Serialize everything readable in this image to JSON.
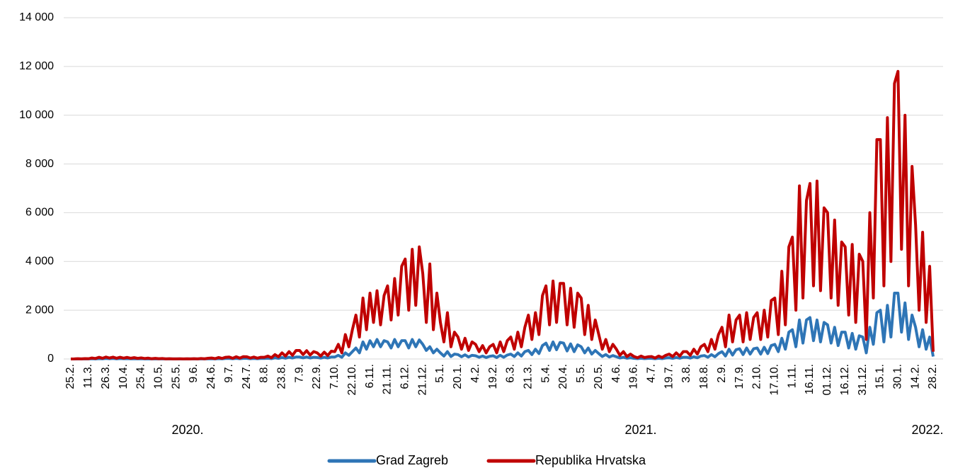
{
  "chart_data": {
    "type": "line",
    "categories": [
      "25.2.",
      null,
      null,
      null,
      null,
      "11.3.",
      null,
      null,
      null,
      null,
      "26.3.",
      null,
      null,
      null,
      null,
      "10.4.",
      null,
      null,
      null,
      null,
      "25.4.",
      null,
      null,
      null,
      null,
      "10.5.",
      null,
      null,
      null,
      null,
      "25.5.",
      null,
      null,
      null,
      null,
      "9.6.",
      null,
      null,
      null,
      null,
      "24.6.",
      null,
      null,
      null,
      null,
      "9.7.",
      null,
      null,
      null,
      null,
      "24.7.",
      null,
      null,
      null,
      null,
      "8.8.",
      null,
      null,
      null,
      null,
      "23.8.",
      null,
      null,
      null,
      null,
      "7.9.",
      null,
      null,
      null,
      null,
      "22.9.",
      null,
      null,
      null,
      null,
      "7.10.",
      null,
      null,
      null,
      null,
      "22.10.",
      null,
      null,
      null,
      null,
      "6.11.",
      null,
      null,
      null,
      null,
      "21.11.",
      null,
      null,
      null,
      null,
      "6.12.",
      null,
      null,
      null,
      null,
      "21.12.",
      null,
      null,
      null,
      null,
      "5.1.",
      null,
      null,
      null,
      null,
      "20.1.",
      null,
      null,
      null,
      null,
      "4.2.",
      null,
      null,
      null,
      null,
      "19.2.",
      null,
      null,
      null,
      null,
      "6.3.",
      null,
      null,
      null,
      null,
      "21.3.",
      null,
      null,
      null,
      null,
      "5.4.",
      null,
      null,
      null,
      null,
      "20.4.",
      null,
      null,
      null,
      null,
      "5.5.",
      null,
      null,
      null,
      null,
      "20.5.",
      null,
      null,
      null,
      null,
      "4.6.",
      null,
      null,
      null,
      null,
      "19.6.",
      null,
      null,
      null,
      null,
      "4.7.",
      null,
      null,
      null,
      null,
      "19.7.",
      null,
      null,
      null,
      null,
      "3.8.",
      null,
      null,
      null,
      null,
      "18.8.",
      null,
      null,
      null,
      null,
      "2.9.",
      null,
      null,
      null,
      null,
      "17.9.",
      null,
      null,
      null,
      null,
      "2.10.",
      null,
      null,
      null,
      null,
      "17.10.",
      null,
      null,
      null,
      null,
      "1.11.",
      null,
      null,
      null,
      null,
      "16.11.",
      null,
      null,
      null,
      null,
      "01.12.",
      null,
      null,
      null,
      null,
      "16.12.",
      null,
      null,
      null,
      null,
      "31.12.",
      null,
      null,
      null,
      null,
      "15.1.",
      null,
      null,
      null,
      null,
      "30.1.",
      null,
      null,
      null,
      null,
      "14.2.",
      null,
      null,
      null,
      null,
      "28.2."
    ],
    "series": [
      {
        "name": "Grad Zagreb",
        "color": "#2e75b6",
        "values": [
          0,
          1,
          3,
          2,
          5,
          3,
          10,
          5,
          15,
          8,
          20,
          10,
          20,
          8,
          18,
          10,
          15,
          8,
          12,
          6,
          10,
          5,
          8,
          3,
          6,
          3,
          5,
          2,
          3,
          2,
          2,
          3,
          1,
          2,
          2,
          3,
          2,
          5,
          3,
          8,
          10,
          5,
          15,
          8,
          20,
          20,
          10,
          25,
          12,
          25,
          25,
          12,
          20,
          10,
          20,
          20,
          30,
          15,
          45,
          25,
          60,
          30,
          70,
          40,
          80,
          80,
          45,
          80,
          40,
          70,
          60,
          35,
          70,
          40,
          80,
          80,
          150,
          70,
          250,
          150,
          300,
          450,
          250,
          700,
          400,
          750,
          500,
          800,
          500,
          750,
          700,
          450,
          800,
          500,
          750,
          750,
          450,
          800,
          500,
          780,
          600,
          350,
          500,
          250,
          400,
          250,
          120,
          300,
          100,
          200,
          180,
          90,
          170,
          80,
          150,
          130,
          70,
          120,
          60,
          110,
          130,
          60,
          150,
          70,
          160,
          200,
          100,
          250,
          120,
          300,
          350,
          180,
          400,
          220,
          550,
          650,
          350,
          700,
          380,
          680,
          650,
          330,
          620,
          300,
          580,
          500,
          250,
          450,
          200,
          350,
          220,
          100,
          180,
          80,
          140,
          90,
          40,
          70,
          30,
          50,
          25,
          15,
          30,
          15,
          25,
          25,
          12,
          30,
          15,
          40,
          50,
          25,
          60,
          30,
          70,
          70,
          35,
          90,
          50,
          120,
          140,
          70,
          180,
          90,
          220,
          300,
          120,
          400,
          160,
          380,
          420,
          180,
          450,
          200,
          420,
          450,
          200,
          480,
          220,
          550,
          600,
          300,
          850,
          400,
          1100,
          1200,
          500,
          1600,
          650,
          1600,
          1700,
          750,
          1600,
          700,
          1500,
          1400,
          650,
          1300,
          550,
          1100,
          1100,
          450,
          1050,
          400,
          950,
          900,
          250,
          1300,
          600,
          1900,
          2000,
          700,
          2200,
          900,
          2700,
          2700,
          1100,
          2300,
          800,
          1800,
          1300,
          500,
          1200,
          400,
          900,
          100
        ]
      },
      {
        "name": "Republika Hrvatska",
        "color": "#c00000",
        "values": [
          0,
          2,
          10,
          5,
          15,
          10,
          40,
          20,
          70,
          30,
          80,
          40,
          75,
          30,
          70,
          35,
          65,
          30,
          55,
          25,
          45,
          20,
          35,
          10,
          25,
          10,
          20,
          5,
          10,
          5,
          5,
          8,
          3,
          6,
          5,
          10,
          4,
          20,
          8,
          30,
          40,
          15,
          60,
          25,
          70,
          80,
          30,
          90,
          35,
          95,
          90,
          40,
          80,
          35,
          70,
          70,
          120,
          50,
          180,
          90,
          250,
          120,
          300,
          150,
          350,
          350,
          180,
          340,
          160,
          300,
          250,
          120,
          280,
          140,
          320,
          300,
          600,
          250,
          1000,
          500,
          1200,
          1800,
          900,
          2500,
          1200,
          2700,
          1500,
          2800,
          1400,
          2600,
          3000,
          1600,
          3300,
          1800,
          3800,
          4100,
          2000,
          4500,
          2200,
          4600,
          3500,
          1500,
          3900,
          1200,
          2700,
          1500,
          700,
          1900,
          500,
          1100,
          900,
          400,
          850,
          350,
          700,
          600,
          300,
          550,
          250,
          500,
          600,
          250,
          700,
          300,
          750,
          900,
          400,
          1100,
          500,
          1300,
          1800,
          800,
          1900,
          1000,
          2600,
          3000,
          1400,
          3200,
          1500,
          3100,
          3100,
          1400,
          2900,
          1300,
          2700,
          2500,
          1000,
          2200,
          800,
          1600,
          1000,
          400,
          800,
          300,
          600,
          400,
          150,
          300,
          100,
          200,
          100,
          50,
          120,
          60,
          90,
          100,
          40,
          120,
          60,
          150,
          200,
          100,
          250,
          120,
          300,
          300,
          150,
          400,
          200,
          500,
          600,
          300,
          800,
          400,
          1000,
          1300,
          500,
          1800,
          700,
          1600,
          1800,
          700,
          1900,
          800,
          1700,
          1900,
          800,
          2000,
          900,
          2400,
          2500,
          1000,
          3600,
          1400,
          4600,
          5000,
          2000,
          7100,
          2500,
          6500,
          7200,
          3000,
          7300,
          2800,
          6200,
          6000,
          2500,
          5700,
          2200,
          4800,
          4600,
          1800,
          4700,
          1500,
          4300,
          4000,
          800,
          6000,
          2500,
          9000,
          9000,
          3000,
          9900,
          4000,
          11300,
          11800,
          4500,
          10000,
          3000,
          7900,
          5500,
          2000,
          5200,
          1500,
          3800,
          300
        ]
      }
    ],
    "year_labels": [
      "2020.",
      "2021.",
      "2022."
    ],
    "ylim": [
      0,
      14000
    ],
    "yticks": [
      0,
      {
        "value": 2000,
        "label": "2 000"
      },
      {
        "value": 4000,
        "label": "4 000"
      },
      {
        "value": 6000,
        "label": "6 000"
      },
      {
        "value": 8000,
        "label": "8 000"
      },
      {
        "value": 10000,
        "label": "10 000"
      },
      {
        "value": 12000,
        "label": "12 000"
      },
      {
        "value": 14000,
        "label": "14 000"
      }
    ],
    "grid": true,
    "legend": "bottom"
  }
}
